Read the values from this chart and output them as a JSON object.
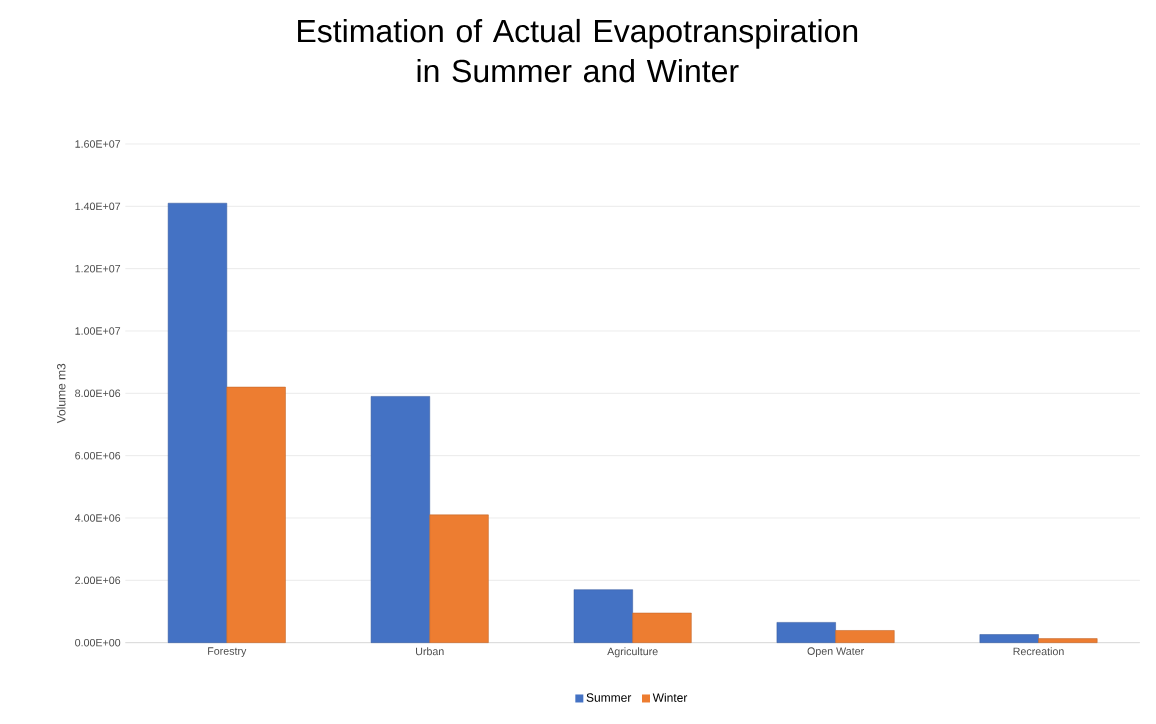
{
  "chart_data": {
    "type": "bar",
    "title": "Estimation of Actual Evapotranspiration in Summer and Winter",
    "ylabel": "Volume m3",
    "categories": [
      "Forestry",
      "Urban",
      "Agriculture",
      "Open Water",
      "Recreation"
    ],
    "series": [
      {
        "name": "Summer",
        "color": "#4472c4",
        "values": [
          14100000,
          7900000,
          1700000,
          650000,
          260000
        ]
      },
      {
        "name": "Winter",
        "color": "#ed7d31",
        "values": [
          8200000,
          4100000,
          950000,
          390000,
          130000
        ]
      }
    ],
    "ylim": [
      0,
      16000000
    ],
    "yticks": [
      {
        "value": 0,
        "label": "0.00E+00"
      },
      {
        "value": 2000000,
        "label": "2.00E+06"
      },
      {
        "value": 4000000,
        "label": "4.00E+06"
      },
      {
        "value": 6000000,
        "label": "6.00E+06"
      },
      {
        "value": 8000000,
        "label": "8.00E+06"
      },
      {
        "value": 10000000,
        "label": "1.00E+07"
      },
      {
        "value": 12000000,
        "label": "1.20E+07"
      },
      {
        "value": 14000000,
        "label": "1.40E+07"
      },
      {
        "value": 16000000,
        "label": "1.60E+07"
      }
    ],
    "grid": "y",
    "legend": "bottom"
  }
}
